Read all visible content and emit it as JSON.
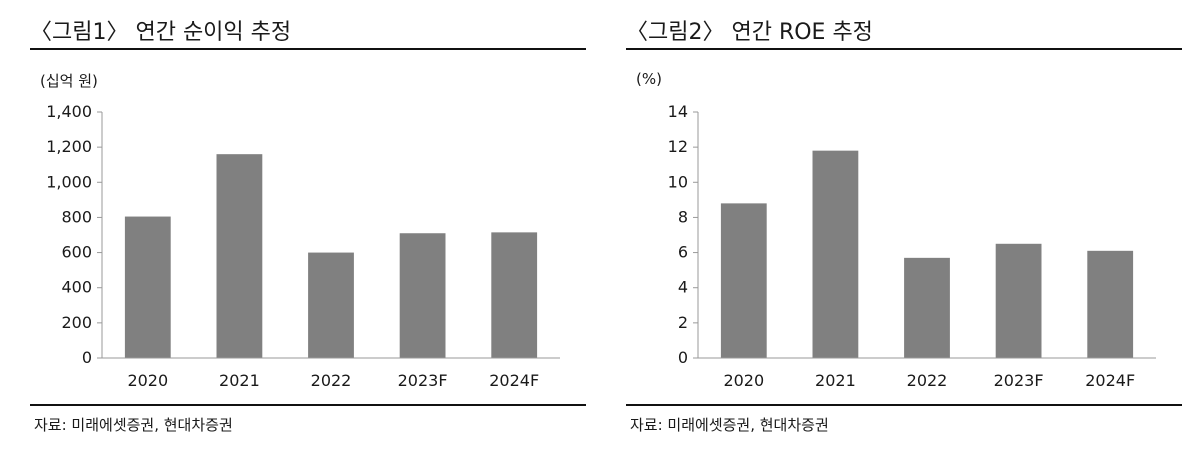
{
  "colors": {
    "bar": "#808080",
    "axis": "#999999",
    "rule": "#111111"
  },
  "chart_data": [
    {
      "type": "bar",
      "title": "〈그림1〉 연간 순이익 추정",
      "unit_label": "(십억 원)",
      "source": "자료: 미래에셋증권, 현대차증권",
      "categories": [
        "2020",
        "2021",
        "2022",
        "2023F",
        "2024F"
      ],
      "values": [
        805,
        1160,
        600,
        710,
        715
      ],
      "ylim": [
        0,
        1400
      ],
      "yticks": [
        0,
        200,
        400,
        600,
        800,
        1000,
        1200,
        1400
      ],
      "ytick_labels": [
        "0",
        "200",
        "400",
        "600",
        "800",
        "1,000",
        "1,200",
        "1,400"
      ],
      "grid": false
    },
    {
      "type": "bar",
      "title": "〈그림2〉 연간 ROE 추정",
      "unit_label": "(%)",
      "source": "자료: 미래에셋증권, 현대차증권",
      "categories": [
        "2020",
        "2021",
        "2022",
        "2023F",
        "2024F"
      ],
      "values": [
        8.8,
        11.8,
        5.7,
        6.5,
        6.1
      ],
      "ylim": [
        0,
        14
      ],
      "yticks": [
        0,
        2,
        4,
        6,
        8,
        10,
        12,
        14
      ],
      "ytick_labels": [
        "0",
        "2",
        "4",
        "6",
        "8",
        "10",
        "12",
        "14"
      ],
      "grid": false
    }
  ]
}
